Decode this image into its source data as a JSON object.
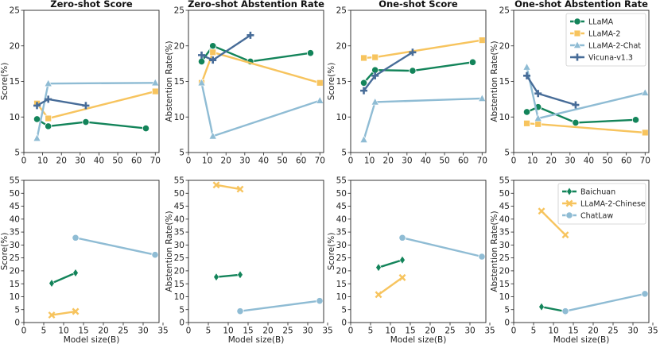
{
  "chart_data": [
    {
      "type": "line",
      "title": "Zero-shot Score",
      "xlabel": "",
      "ylabel": "Score(%)",
      "xlim": [
        0,
        72
      ],
      "ylim": [
        5,
        25
      ],
      "xticks": [
        0,
        10,
        20,
        30,
        40,
        50,
        60,
        70
      ],
      "yticks": [
        5,
        10,
        15,
        20,
        25
      ],
      "series": [
        {
          "name": "LLaMA",
          "x": [
            7,
            13,
            33,
            65
          ],
          "y": [
            9.7,
            8.7,
            9.3,
            8.4
          ]
        },
        {
          "name": "LLaMA-2",
          "x": [
            7,
            13,
            70
          ],
          "y": [
            11.9,
            9.8,
            13.6
          ]
        },
        {
          "name": "LLaMA-2-Chat",
          "x": [
            7,
            13,
            70
          ],
          "y": [
            7.0,
            14.7,
            14.8
          ]
        },
        {
          "name": "Vicuna-v1.3",
          "x": [
            7,
            13,
            33
          ],
          "y": [
            11.6,
            12.5,
            11.6
          ]
        }
      ]
    },
    {
      "type": "line",
      "title": "Zero-shot Abstention Rate",
      "xlabel": "",
      "ylabel": "Abstention Rate(%)",
      "xlim": [
        0,
        72
      ],
      "ylim": [
        5,
        25
      ],
      "xticks": [
        0,
        10,
        20,
        30,
        40,
        50,
        60,
        70
      ],
      "yticks": [
        5,
        10,
        15,
        20,
        25
      ],
      "series": [
        {
          "name": "LLaMA",
          "x": [
            7,
            13,
            33,
            65
          ],
          "y": [
            17.8,
            20.0,
            17.8,
            19.0
          ]
        },
        {
          "name": "LLaMA-2",
          "x": [
            7,
            13,
            70
          ],
          "y": [
            14.8,
            19.1,
            14.8
          ]
        },
        {
          "name": "LLaMA-2-Chat",
          "x": [
            7,
            13,
            70
          ],
          "y": [
            14.8,
            7.3,
            12.3
          ]
        },
        {
          "name": "Vicuna-v1.3",
          "x": [
            7,
            13,
            33
          ],
          "y": [
            18.7,
            18.0,
            21.5
          ]
        }
      ]
    },
    {
      "type": "line",
      "title": "One-shot Score",
      "xlabel": "",
      "ylabel": "Score(%)",
      "xlim": [
        0,
        72
      ],
      "ylim": [
        5,
        25
      ],
      "xticks": [
        0,
        10,
        20,
        30,
        40,
        50,
        60,
        70
      ],
      "yticks": [
        5,
        10,
        15,
        20,
        25
      ],
      "series": [
        {
          "name": "LLaMA",
          "x": [
            7,
            13,
            33,
            65
          ],
          "y": [
            14.8,
            16.6,
            16.5,
            17.7
          ]
        },
        {
          "name": "LLaMA-2",
          "x": [
            7,
            13,
            70
          ],
          "y": [
            18.3,
            18.4,
            20.8
          ]
        },
        {
          "name": "LLaMA-2-Chat",
          "x": [
            7,
            13,
            70
          ],
          "y": [
            6.8,
            12.1,
            12.6
          ]
        },
        {
          "name": "Vicuna-v1.3",
          "x": [
            7,
            13,
            33
          ],
          "y": [
            13.7,
            15.8,
            19.1
          ]
        }
      ]
    },
    {
      "type": "line",
      "title": "One-shot Abstention Rate",
      "xlabel": "",
      "ylabel": "Abstention Rate(%)",
      "xlim": [
        0,
        72
      ],
      "ylim": [
        5,
        25
      ],
      "xticks": [
        0,
        10,
        20,
        30,
        40,
        50,
        60,
        70
      ],
      "yticks": [
        5,
        10,
        15,
        20,
        25
      ],
      "legend": "top-right",
      "series": [
        {
          "name": "LLaMA",
          "x": [
            7,
            13,
            33,
            65
          ],
          "y": [
            10.7,
            11.4,
            9.2,
            9.6
          ]
        },
        {
          "name": "LLaMA-2",
          "x": [
            7,
            13,
            70
          ],
          "y": [
            9.1,
            9.0,
            7.8
          ]
        },
        {
          "name": "LLaMA-2-Chat",
          "x": [
            7,
            13,
            70
          ],
          "y": [
            17.0,
            9.8,
            13.4
          ]
        },
        {
          "name": "Vicuna-v1.3",
          "x": [
            7,
            13,
            33
          ],
          "y": [
            15.8,
            13.3,
            11.7
          ]
        }
      ]
    },
    {
      "type": "line",
      "title": "",
      "xlabel": "Model size(B)",
      "ylabel": "Score(%)",
      "xlim": [
        0,
        34
      ],
      "ylim": [
        0,
        55
      ],
      "xticks": [
        0,
        5,
        10,
        15,
        20,
        25,
        30,
        35
      ],
      "yticks": [
        0,
        5,
        10,
        15,
        20,
        25,
        30,
        35,
        40,
        45,
        50,
        55
      ],
      "series": [
        {
          "name": "Baichuan",
          "x": [
            7,
            13
          ],
          "y": [
            15.2,
            19.2
          ]
        },
        {
          "name": "LLaMA-2-Chinese",
          "x": [
            7,
            13
          ],
          "y": [
            2.9,
            4.3
          ]
        },
        {
          "name": "ChatLaw",
          "x": [
            13,
            33
          ],
          "y": [
            32.8,
            26.2
          ]
        }
      ]
    },
    {
      "type": "line",
      "title": "",
      "xlabel": "Model size(B)",
      "ylabel": "Abstention Rate(%)",
      "xlim": [
        0,
        34
      ],
      "ylim": [
        0,
        55
      ],
      "xticks": [
        0,
        5,
        10,
        15,
        20,
        25,
        30,
        35
      ],
      "yticks": [
        0,
        5,
        10,
        15,
        20,
        25,
        30,
        35,
        40,
        45,
        50,
        55
      ],
      "series": [
        {
          "name": "Baichuan",
          "x": [
            7,
            13
          ],
          "y": [
            17.6,
            18.5
          ]
        },
        {
          "name": "LLaMA-2-Chinese",
          "x": [
            7,
            13
          ],
          "y": [
            53.2,
            51.6
          ]
        },
        {
          "name": "ChatLaw",
          "x": [
            13,
            33
          ],
          "y": [
            4.4,
            8.4
          ]
        }
      ]
    },
    {
      "type": "line",
      "title": "",
      "xlabel": "Model size(B)",
      "ylabel": "Score(%)",
      "xlim": [
        0,
        34
      ],
      "ylim": [
        0,
        55
      ],
      "xticks": [
        0,
        5,
        10,
        15,
        20,
        25,
        30,
        35
      ],
      "yticks": [
        0,
        5,
        10,
        15,
        20,
        25,
        30,
        35,
        40,
        45,
        50,
        55
      ],
      "series": [
        {
          "name": "Baichuan",
          "x": [
            7,
            13
          ],
          "y": [
            21.3,
            24.2
          ]
        },
        {
          "name": "LLaMA-2-Chinese",
          "x": [
            7,
            13
          ],
          "y": [
            10.8,
            17.4
          ]
        },
        {
          "name": "ChatLaw",
          "x": [
            13,
            33
          ],
          "y": [
            32.8,
            25.5
          ]
        }
      ]
    },
    {
      "type": "line",
      "title": "",
      "xlabel": "Model size(B)",
      "ylabel": "Abstention Rate(%)",
      "xlim": [
        0,
        34
      ],
      "ylim": [
        0,
        55
      ],
      "xticks": [
        0,
        5,
        10,
        15,
        20,
        25,
        30,
        35
      ],
      "yticks": [
        0,
        5,
        10,
        15,
        20,
        25,
        30,
        35,
        40,
        45,
        50,
        55
      ],
      "legend": "top-right",
      "series": [
        {
          "name": "Baichuan",
          "x": [
            7,
            13
          ],
          "y": [
            6.1,
            4.3
          ]
        },
        {
          "name": "LLaMA-2-Chinese",
          "x": [
            7,
            13
          ],
          "y": [
            43.1,
            33.9
          ]
        },
        {
          "name": "ChatLaw",
          "x": [
            13,
            33
          ],
          "y": [
            4.4,
            11.1
          ]
        }
      ]
    }
  ],
  "series_styles": {
    "LLaMA": {
      "color": "#13845a",
      "marker": "circle"
    },
    "LLaMA-2": {
      "color": "#f7c45e",
      "marker": "square"
    },
    "LLaMA-2-Chat": {
      "color": "#8fbcd4",
      "marker": "triangle"
    },
    "Vicuna-v1.3": {
      "color": "#476c98",
      "marker": "plus"
    },
    "Baichuan": {
      "color": "#13845a",
      "marker": "diamond"
    },
    "LLaMA-2-Chinese": {
      "color": "#f7c45e",
      "marker": "x"
    },
    "ChatLaw": {
      "color": "#8fbcd4",
      "marker": "circle"
    }
  }
}
